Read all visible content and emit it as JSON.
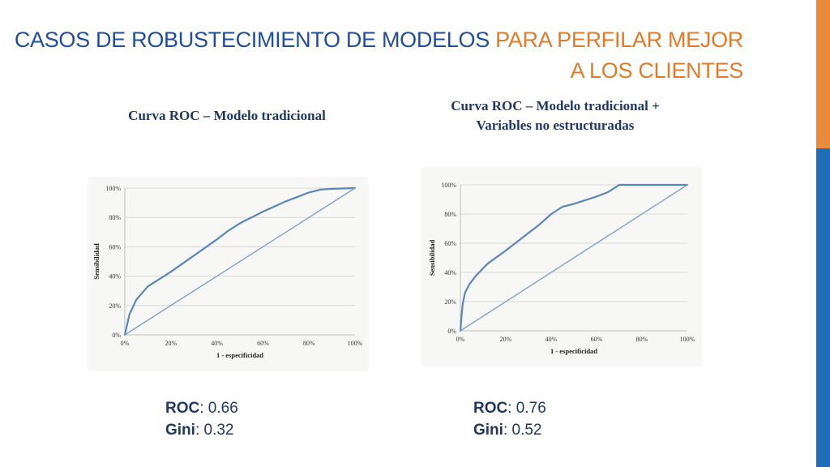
{
  "slide": {
    "title_part1": "CASOS DE ROBUSTECIMIENTO DE MODELOS ",
    "title_part2": "PARA PERFILAR MEJOR",
    "title_part3": "A LOS CLIENTES"
  },
  "chart_data": [
    {
      "type": "line",
      "title": "Curva ROC – Modelo tradicional",
      "xlabel": "1 - especificidad",
      "ylabel": "Sensibilidad",
      "xlim": [
        0,
        100
      ],
      "ylim": [
        0,
        100
      ],
      "x_ticks": [
        "0%",
        "20%",
        "40%",
        "60%",
        "80%",
        "100%"
      ],
      "y_ticks": [
        "0%",
        "20%",
        "40%",
        "60%",
        "80%",
        "100%"
      ],
      "grid": true,
      "series": [
        {
          "x": [
            0,
            2,
            5,
            10,
            20,
            30,
            40,
            45,
            50,
            60,
            70,
            80,
            85,
            90,
            100
          ],
          "y": [
            0,
            14,
            24,
            33,
            43,
            54,
            65,
            71,
            76,
            84,
            91,
            97,
            99,
            99.5,
            100
          ]
        },
        {
          "x": [
            0,
            100
          ],
          "y": [
            0,
            100
          ]
        }
      ],
      "stats": {
        "roc_label": "ROC",
        "roc_value": ": 0.66",
        "gini_label": "Gini",
        "gini_value": ": 0.32"
      }
    },
    {
      "type": "line",
      "title": "Curva ROC – Modelo tradicional +\nVariables no estructuradas",
      "xlabel": "1 - especificidad",
      "ylabel": "Sensibilidad",
      "xlim": [
        0,
        100
      ],
      "ylim": [
        0,
        100
      ],
      "x_ticks": [
        "0%",
        "20%",
        "40%",
        "60%",
        "80%",
        "100%"
      ],
      "y_ticks": [
        "0%",
        "20%",
        "40%",
        "60%",
        "80%",
        "100%"
      ],
      "grid": true,
      "series": [
        {
          "x": [
            0,
            0.5,
            1,
            2,
            4,
            7,
            12,
            20,
            30,
            35,
            40,
            45,
            50,
            60,
            65,
            70,
            80,
            90,
            100
          ],
          "y": [
            0,
            10,
            18,
            26,
            32,
            38,
            46,
            55,
            67,
            73,
            80,
            85,
            87,
            92,
            95,
            100,
            100,
            100,
            100
          ]
        },
        {
          "x": [
            0,
            100
          ],
          "y": [
            0,
            100
          ]
        }
      ],
      "stats": {
        "roc_label": "ROC",
        "roc_value": ": 0.76",
        "gini_label": "Gini",
        "gini_value": ": 0.52"
      }
    }
  ],
  "colors": {
    "curve": "#5b86b9",
    "diagonal": "#7ea2ca",
    "grid": "#d9d9d9"
  }
}
